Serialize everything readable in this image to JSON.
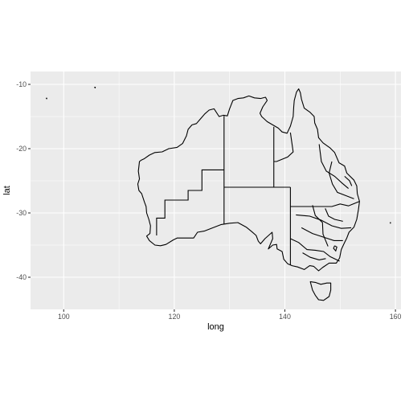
{
  "chart_data": {
    "type": "map",
    "title": "",
    "xlabel": "long",
    "ylabel": "lat",
    "xlim": [
      94,
      161
    ],
    "ylim": [
      -45,
      -8
    ],
    "x_ticks": [
      100,
      120,
      140,
      160
    ],
    "y_ticks": [
      -10,
      -20,
      -30,
      -40
    ],
    "x_tick_labels": [
      "100",
      "120",
      "140",
      "160"
    ],
    "y_tick_labels": [
      "-10",
      "-20",
      "-30",
      "-40"
    ],
    "grid": true,
    "colors": {
      "panel": "#ebebeb",
      "grid": "#ffffff",
      "outline": "#000000"
    },
    "mainland_outline": [
      [
        113.7,
        -22.0
      ],
      [
        114.0,
        -21.8
      ],
      [
        114.5,
        -21.6
      ],
      [
        115.5,
        -21.0
      ],
      [
        116.5,
        -20.6
      ],
      [
        117.8,
        -20.5
      ],
      [
        119.0,
        -20.0
      ],
      [
        120.5,
        -19.8
      ],
      [
        121.5,
        -19.2
      ],
      [
        122.2,
        -18.0
      ],
      [
        122.5,
        -17.0
      ],
      [
        123.2,
        -16.3
      ],
      [
        124.0,
        -16.1
      ],
      [
        124.6,
        -15.5
      ],
      [
        125.5,
        -14.6
      ],
      [
        126.3,
        -14.0
      ],
      [
        127.2,
        -13.8
      ],
      [
        128.1,
        -15.0
      ],
      [
        128.9,
        -14.8
      ],
      [
        129.6,
        -14.9
      ],
      [
        130.0,
        -13.8
      ],
      [
        130.6,
        -12.5
      ],
      [
        131.5,
        -12.2
      ],
      [
        132.5,
        -12.1
      ],
      [
        133.5,
        -11.8
      ],
      [
        134.5,
        -12.1
      ],
      [
        135.6,
        -12.2
      ],
      [
        136.5,
        -12.0
      ],
      [
        136.8,
        -12.5
      ],
      [
        136.0,
        -13.5
      ],
      [
        135.5,
        -14.5
      ],
      [
        135.8,
        -15.0
      ],
      [
        136.8,
        -15.8
      ],
      [
        137.8,
        -16.3
      ],
      [
        138.8,
        -16.8
      ],
      [
        139.5,
        -17.4
      ],
      [
        140.4,
        -17.6
      ],
      [
        141.0,
        -16.5
      ],
      [
        141.5,
        -15.0
      ],
      [
        141.6,
        -13.5
      ],
      [
        141.7,
        -12.5
      ],
      [
        142.1,
        -11.2
      ],
      [
        142.5,
        -10.7
      ],
      [
        142.8,
        -11.3
      ],
      [
        143.0,
        -12.3
      ],
      [
        143.5,
        -13.7
      ],
      [
        144.5,
        -14.3
      ],
      [
        145.3,
        -15.0
      ],
      [
        145.4,
        -16.0
      ],
      [
        145.9,
        -17.0
      ],
      [
        146.1,
        -18.3
      ],
      [
        146.9,
        -19.1
      ],
      [
        148.2,
        -19.9
      ],
      [
        149.0,
        -20.6
      ],
      [
        149.8,
        -22.2
      ],
      [
        150.8,
        -22.7
      ],
      [
        151.2,
        -23.8
      ],
      [
        152.5,
        -24.9
      ],
      [
        153.0,
        -25.8
      ],
      [
        153.1,
        -27.0
      ],
      [
        153.5,
        -28.2
      ],
      [
        153.3,
        -29.5
      ],
      [
        153.0,
        -31.0
      ],
      [
        152.5,
        -32.2
      ],
      [
        151.6,
        -33.0
      ],
      [
        151.2,
        -33.9
      ],
      [
        150.8,
        -34.6
      ],
      [
        150.2,
        -35.7
      ],
      [
        149.9,
        -37.0
      ],
      [
        149.3,
        -37.8
      ],
      [
        148.0,
        -37.8
      ],
      [
        146.8,
        -38.5
      ],
      [
        146.1,
        -39.0
      ],
      [
        145.2,
        -38.3
      ],
      [
        144.5,
        -38.2
      ],
      [
        143.5,
        -38.8
      ],
      [
        142.3,
        -38.4
      ],
      [
        141.3,
        -38.2
      ],
      [
        140.5,
        -37.9
      ],
      [
        139.8,
        -37.2
      ],
      [
        139.5,
        -36.0
      ],
      [
        138.6,
        -35.6
      ],
      [
        138.5,
        -34.9
      ],
      [
        137.8,
        -35.0
      ],
      [
        137.0,
        -35.6
      ],
      [
        137.8,
        -34.0
      ],
      [
        137.7,
        -33.0
      ],
      [
        136.4,
        -34.0
      ],
      [
        135.6,
        -34.8
      ],
      [
        135.2,
        -34.4
      ],
      [
        134.8,
        -33.5
      ],
      [
        134.0,
        -32.9
      ],
      [
        133.0,
        -32.2
      ],
      [
        131.5,
        -31.5
      ],
      [
        130.0,
        -31.6
      ],
      [
        128.5,
        -31.8
      ],
      [
        127.0,
        -32.3
      ],
      [
        125.5,
        -32.8
      ],
      [
        124.2,
        -33.0
      ],
      [
        123.5,
        -33.9
      ],
      [
        122.0,
        -33.9
      ],
      [
        120.5,
        -33.9
      ],
      [
        119.8,
        -34.2
      ],
      [
        118.5,
        -34.9
      ],
      [
        117.5,
        -35.1
      ],
      [
        116.5,
        -35.0
      ],
      [
        115.5,
        -34.3
      ],
      [
        115.0,
        -33.6
      ],
      [
        115.6,
        -33.2
      ],
      [
        115.7,
        -32.0
      ],
      [
        115.4,
        -31.0
      ],
      [
        115.0,
        -30.0
      ],
      [
        114.9,
        -29.0
      ],
      [
        114.6,
        -28.3
      ],
      [
        114.1,
        -27.0
      ],
      [
        113.6,
        -26.5
      ],
      [
        113.4,
        -25.5
      ],
      [
        113.7,
        -24.7
      ],
      [
        113.5,
        -23.5
      ],
      [
        113.7,
        -22.0
      ]
    ],
    "tasmania_outline": [
      [
        144.6,
        -40.7
      ],
      [
        145.5,
        -40.8
      ],
      [
        146.5,
        -41.1
      ],
      [
        147.6,
        -40.9
      ],
      [
        148.3,
        -40.9
      ],
      [
        148.3,
        -42.0
      ],
      [
        148.0,
        -43.0
      ],
      [
        147.0,
        -43.6
      ],
      [
        146.1,
        -43.5
      ],
      [
        145.5,
        -42.8
      ],
      [
        145.0,
        -42.0
      ],
      [
        144.6,
        -40.7
      ]
    ],
    "state_borders": [
      [
        [
          129.0,
          -14.9
        ],
        [
          129.0,
          -31.7
        ]
      ],
      [
        [
          138.0,
          -16.6
        ],
        [
          138.0,
          -26.0
        ]
      ],
      [
        [
          129.0,
          -26.0
        ],
        [
          141.0,
          -26.0
        ]
      ],
      [
        [
          141.0,
          -26.0
        ],
        [
          141.0,
          -38.1
        ]
      ],
      [
        [
          141.0,
          -29.0
        ],
        [
          148.5,
          -29.0
        ],
        [
          150.0,
          -28.6
        ],
        [
          151.5,
          -28.9
        ],
        [
          153.5,
          -28.2
        ]
      ],
      [
        [
          141.0,
          -34.0
        ],
        [
          142.5,
          -34.6
        ],
        [
          144.0,
          -35.7
        ],
        [
          145.5,
          -35.8
        ],
        [
          147.0,
          -36.0
        ],
        [
          148.2,
          -36.8
        ],
        [
          149.9,
          -37.5
        ]
      ],
      [
        [
          129.0,
          -23.3
        ],
        [
          125.0,
          -23.3
        ],
        [
          125.0,
          -26.5
        ],
        [
          122.5,
          -26.5
        ],
        [
          122.5,
          -28.0
        ],
        [
          118.3,
          -28.0
        ],
        [
          118.3,
          -30.8
        ],
        [
          116.8,
          -30.8
        ],
        [
          116.8,
          -33.5
        ]
      ],
      [
        [
          141.0,
          -17.5
        ],
        [
          141.5,
          -20.5
        ],
        [
          140.5,
          -21.3
        ],
        [
          138.5,
          -22.0
        ],
        [
          138.0,
          -22.0
        ]
      ],
      [
        [
          146.2,
          -19.3
        ],
        [
          146.6,
          -22.0
        ],
        [
          147.5,
          -23.5
        ],
        [
          149.0,
          -24.3
        ],
        [
          150.4,
          -25.4
        ],
        [
          151.5,
          -26.2
        ]
      ],
      [
        [
          148.5,
          -22.0
        ],
        [
          148.0,
          -23.8
        ],
        [
          148.6,
          -25.5
        ],
        [
          149.5,
          -26.8
        ],
        [
          151.0,
          -27.3
        ],
        [
          152.5,
          -27.8
        ]
      ],
      [
        [
          142.0,
          -30.3
        ],
        [
          144.5,
          -30.5
        ],
        [
          146.5,
          -31.1
        ],
        [
          148.5,
          -32.0
        ],
        [
          150.2,
          -32.4
        ],
        [
          152.0,
          -32.3
        ]
      ],
      [
        [
          143.0,
          -32.3
        ],
        [
          145.0,
          -33.2
        ],
        [
          147.1,
          -33.8
        ],
        [
          148.9,
          -34.3
        ],
        [
          150.5,
          -34.3
        ]
      ],
      [
        [
          145.0,
          -28.8
        ],
        [
          145.5,
          -30.4
        ],
        [
          146.8,
          -31.5
        ],
        [
          146.9,
          -33.3
        ],
        [
          147.8,
          -35.2
        ]
      ],
      [
        [
          149.0,
          -35.1
        ],
        [
          149.4,
          -35.3
        ],
        [
          149.2,
          -35.9
        ],
        [
          148.8,
          -35.5
        ],
        [
          149.0,
          -35.1
        ]
      ],
      [
        [
          143.2,
          -36.2
        ],
        [
          144.6,
          -36.9
        ],
        [
          146.2,
          -37.3
        ],
        [
          147.4,
          -37.1
        ]
      ],
      [
        [
          147.3,
          -29.3
        ],
        [
          147.9,
          -30.5
        ],
        [
          149.0,
          -31.0
        ],
        [
          150.5,
          -31.3
        ]
      ],
      [
        [
          150.8,
          -24.3
        ],
        [
          151.7,
          -25.0
        ],
        [
          152.1,
          -25.8
        ]
      ]
    ],
    "islands": [
      [
        [
          96.85,
          -12.15
        ],
        [
          96.95,
          -12.15
        ],
        [
          96.92,
          -12.25
        ],
        [
          96.85,
          -12.15
        ]
      ],
      [
        [
          105.6,
          -10.45
        ],
        [
          105.72,
          -10.45
        ],
        [
          105.68,
          -10.55
        ],
        [
          105.6,
          -10.45
        ]
      ],
      [
        [
          159.05,
          -31.5
        ],
        [
          159.12,
          -31.5
        ],
        [
          159.09,
          -31.6
        ],
        [
          159.05,
          -31.5
        ]
      ]
    ]
  }
}
